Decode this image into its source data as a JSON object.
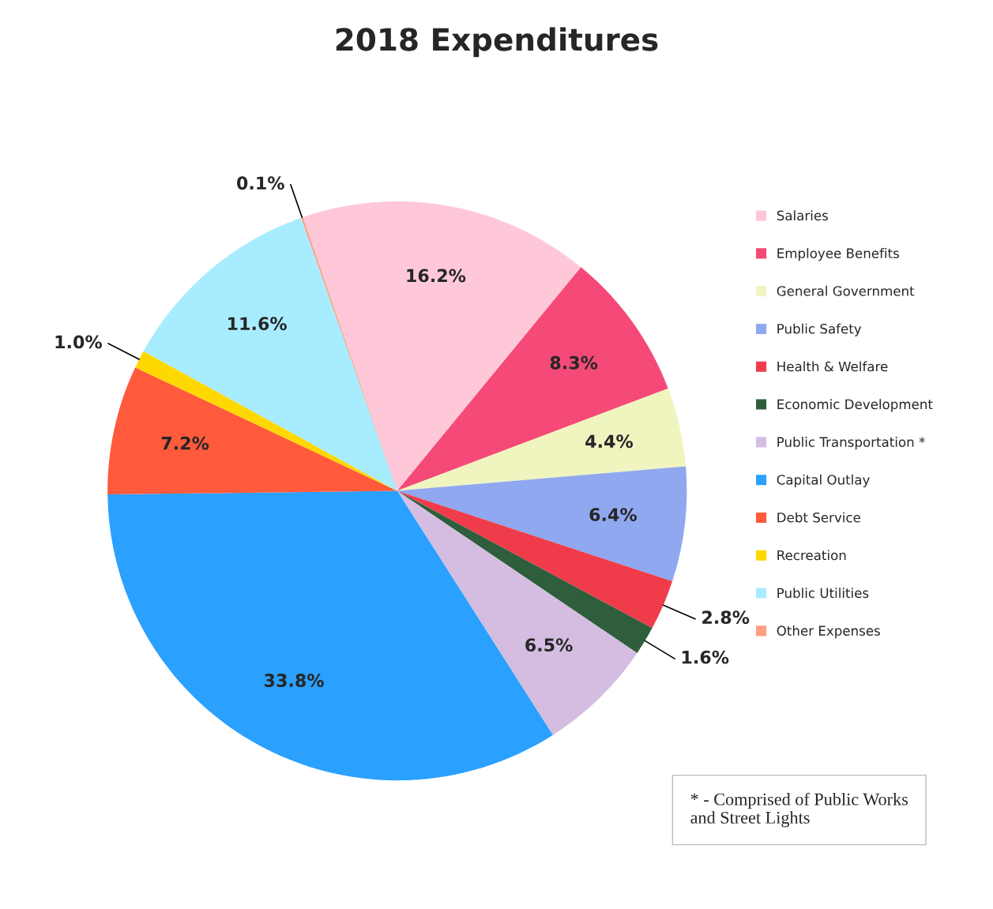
{
  "chart_data": {
    "type": "pie",
    "title": "2018 Expenditures",
    "categories": [
      "Salaries",
      "Employee Benefits",
      "General Government",
      "Public Safety",
      "Health & Welfare",
      "Economic Development",
      "Public Transportation *",
      "Capital Outlay",
      "Debt Service",
      "Recreation",
      "Public Utilities",
      "Other Expenses"
    ],
    "values": [
      16.2,
      8.3,
      4.4,
      6.4,
      2.8,
      1.6,
      6.5,
      33.8,
      7.2,
      1.0,
      11.6,
      0.1
    ],
    "colors": [
      "#ffc8d8",
      "#f54a78",
      "#f0f5c0",
      "#8fa8f0",
      "#f03c4a",
      "#2e5e3c",
      "#d4bde0",
      "#2aa0ff",
      "#ff5a3c",
      "#ffd800",
      "#a8ecff",
      "#ff9f80"
    ],
    "value_labels": [
      "16.2%",
      "8.3%",
      "4.4%",
      "6.4%",
      "2.8%",
      "1.6%",
      "6.5%",
      "33.8%",
      "7.2%",
      "1.0%",
      "11.6%",
      "0.1%"
    ],
    "legend": "right",
    "annotations": [
      "* - Comprised of Public Works\nand Street Lights"
    ]
  }
}
